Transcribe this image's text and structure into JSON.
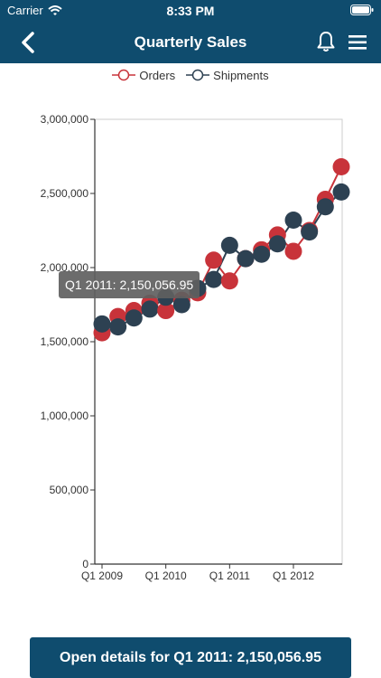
{
  "status_bar": {
    "carrier": "Carrier",
    "time": "8:33 PM"
  },
  "header": {
    "title": "Quarterly Sales"
  },
  "legend": {
    "orders": "Orders",
    "shipments": "Shipments"
  },
  "colors": {
    "navbar": "#0f4c6e",
    "orders": "#c8333a",
    "shipments": "#2d4152",
    "tooltip": "#606060"
  },
  "tooltip": {
    "text": "Q1 2011: 2,150,056.95"
  },
  "action_button": {
    "label": "Open details for Q1 2011: 2,150,056.95"
  },
  "chart_data": {
    "type": "line",
    "x_ticks": [
      "Q1 2009",
      "Q1 2010",
      "Q1 2011",
      "Q1 2012"
    ],
    "x_tick_quarter_index": [
      0,
      4,
      8,
      12
    ],
    "y_ticks": [
      0,
      500000,
      1000000,
      1500000,
      2000000,
      2500000,
      3000000
    ],
    "y_tick_labels": [
      "0",
      "500,000",
      "1,000,000",
      "1,500,000",
      "2,000,000",
      "2,500,000",
      "3,000,000"
    ],
    "ylim": [
      0,
      3000000
    ],
    "grid": false,
    "legend_position": "top",
    "series": [
      {
        "name": "Orders",
        "color": "#c8333a",
        "values": [
          1560000,
          1670000,
          1710000,
          1760000,
          1710000,
          1780000,
          1830000,
          2050000,
          1910000,
          2060000,
          2120000,
          2220000,
          2110000,
          2250000,
          2460000,
          2680000
        ]
      },
      {
        "name": "Shipments",
        "color": "#2d4152",
        "values": [
          1620000,
          1600000,
          1660000,
          1720000,
          1800000,
          1750000,
          1860000,
          1920000,
          2150057,
          2060000,
          2090000,
          2160000,
          2320000,
          2240000,
          2410000,
          2510000
        ]
      }
    ]
  }
}
